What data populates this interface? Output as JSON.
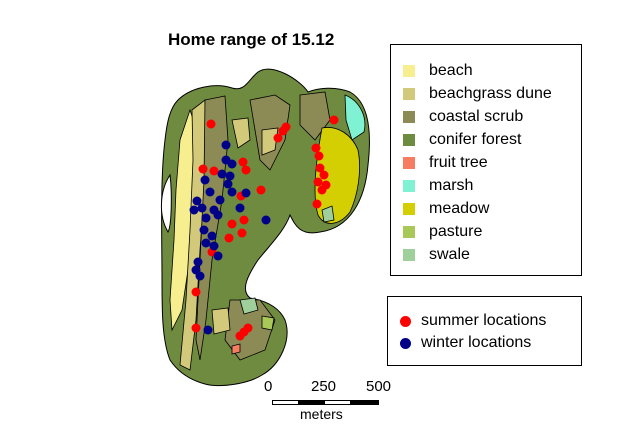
{
  "title": "Home range of 15.12",
  "colors": {
    "beach": "#f7ef8f",
    "beachgrass dune": "#d3c97a",
    "coastal scrub": "#8c8a55",
    "conifer forest": "#6f8b40",
    "fruit tree": "#f77d61",
    "marsh": "#7ff2d4",
    "meadow": "#d4cf02",
    "pasture": "#a8c957",
    "swale": "#9fcf9b",
    "summer": "#ff0000",
    "winter": "#000088"
  },
  "habitat_legend": [
    {
      "label": "beach",
      "color": "#f7ef8f"
    },
    {
      "label": "beachgrass dune",
      "color": "#d3c97a"
    },
    {
      "label": "coastal scrub",
      "color": "#8c8a55"
    },
    {
      "label": "conifer forest",
      "color": "#6f8b40"
    },
    {
      "label": "fruit tree",
      "color": "#f77d61"
    },
    {
      "label": "marsh",
      "color": "#7ff2d4"
    },
    {
      "label": "meadow",
      "color": "#d4cf02"
    },
    {
      "label": "pasture",
      "color": "#a8c957"
    },
    {
      "label": "swale",
      "color": "#9fcf9b"
    }
  ],
  "location_legend": [
    {
      "label": "summer locations",
      "color": "#ff0000"
    },
    {
      "label": "winter locations",
      "color": "#000088"
    }
  ],
  "scale_bar": {
    "ticks": [
      "0",
      "250",
      "500"
    ],
    "unit": "meters"
  }
}
